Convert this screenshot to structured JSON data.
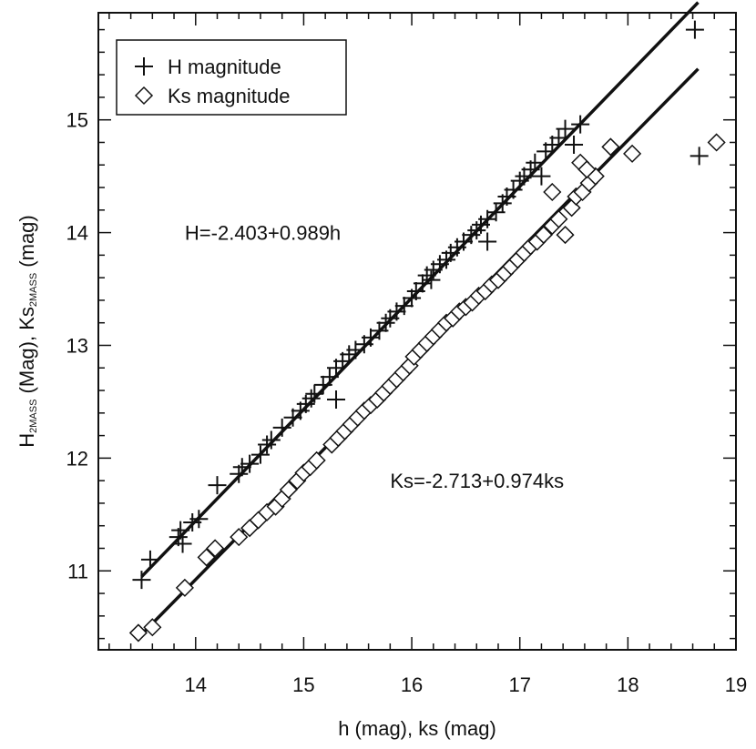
{
  "chart_data": {
    "type": "scatter",
    "xlabel": "h (mag), ks (mag)",
    "ylabel_parts": [
      {
        "text": "H",
        "sub": false
      },
      {
        "text": "2MASS",
        "sub": true
      },
      {
        "text": " (Mag), Ks",
        "sub": false
      },
      {
        "text": "2MASS",
        "sub": true
      },
      {
        "text": " (mag)",
        "sub": false
      }
    ],
    "xlim": [
      13.1,
      19.0
    ],
    "ylim": [
      10.3,
      15.95
    ],
    "xticks": [
      14,
      15,
      16,
      17,
      18,
      19
    ],
    "yticks": [
      11,
      12,
      13,
      14,
      15
    ],
    "xminor": 0.2,
    "yminor": 0.2,
    "grid": false,
    "legend": {
      "position": "top-left",
      "entries": [
        {
          "marker": "plus",
          "label": "H magnitude"
        },
        {
          "marker": "diamond",
          "label": "Ks magnitude"
        }
      ]
    },
    "annotations": [
      {
        "text": "H=-2.403+0.989h",
        "x": 13.9,
        "y": 14.0
      },
      {
        "text": "Ks=-2.713+0.974ks",
        "x": 15.8,
        "y": 11.8
      }
    ],
    "fits": [
      {
        "series": "H magnitude",
        "intercept": -2.403,
        "slope": 0.989,
        "x_range": [
          13.5,
          18.65
        ]
      },
      {
        "series": "Ks magnitude",
        "intercept": -2.713,
        "slope": 0.974,
        "x_range": [
          13.5,
          18.65
        ]
      }
    ],
    "series": [
      {
        "name": "H magnitude",
        "marker": "plus",
        "points": [
          [
            13.5,
            10.92
          ],
          [
            13.58,
            11.1
          ],
          [
            13.84,
            11.3
          ],
          [
            13.86,
            11.36
          ],
          [
            13.88,
            11.24
          ],
          [
            13.97,
            11.43
          ],
          [
            14.03,
            11.46
          ],
          [
            14.2,
            11.76
          ],
          [
            14.4,
            11.86
          ],
          [
            14.43,
            11.92
          ],
          [
            14.5,
            11.95
          ],
          [
            14.6,
            12.03
          ],
          [
            14.66,
            12.12
          ],
          [
            14.7,
            12.16
          ],
          [
            14.8,
            12.27
          ],
          [
            14.9,
            12.36
          ],
          [
            14.97,
            12.42
          ],
          [
            15.02,
            12.48
          ],
          [
            15.07,
            12.53
          ],
          [
            15.1,
            12.57
          ],
          [
            15.18,
            12.65
          ],
          [
            15.24,
            12.72
          ],
          [
            15.3,
            12.52
          ],
          [
            15.3,
            12.8
          ],
          [
            15.36,
            12.86
          ],
          [
            15.42,
            12.92
          ],
          [
            15.48,
            12.96
          ],
          [
            15.56,
            13.01
          ],
          [
            15.62,
            13.07
          ],
          [
            15.7,
            13.13
          ],
          [
            15.76,
            13.2
          ],
          [
            15.8,
            13.24
          ],
          [
            15.86,
            13.3
          ],
          [
            15.93,
            13.35
          ],
          [
            16.0,
            13.42
          ],
          [
            16.04,
            13.48
          ],
          [
            16.1,
            13.55
          ],
          [
            16.14,
            13.62
          ],
          [
            16.18,
            13.58
          ],
          [
            16.2,
            13.67
          ],
          [
            16.26,
            13.72
          ],
          [
            16.32,
            13.76
          ],
          [
            16.36,
            13.82
          ],
          [
            16.42,
            13.87
          ],
          [
            16.48,
            13.92
          ],
          [
            16.55,
            13.98
          ],
          [
            16.6,
            14.02
          ],
          [
            16.64,
            14.07
          ],
          [
            16.7,
            14.12
          ],
          [
            16.7,
            13.92
          ],
          [
            16.78,
            14.18
          ],
          [
            16.84,
            14.26
          ],
          [
            16.88,
            14.32
          ],
          [
            16.94,
            14.38
          ],
          [
            17.0,
            14.46
          ],
          [
            17.04,
            14.5
          ],
          [
            17.1,
            14.56
          ],
          [
            17.14,
            14.62
          ],
          [
            17.2,
            14.5
          ],
          [
            17.24,
            14.72
          ],
          [
            17.3,
            14.78
          ],
          [
            17.36,
            14.84
          ],
          [
            17.42,
            14.92
          ],
          [
            17.5,
            14.78
          ],
          [
            17.56,
            14.96
          ],
          [
            18.62,
            15.8
          ],
          [
            18.66,
            14.68
          ]
        ]
      },
      {
        "name": "Ks magnitude",
        "marker": "diamond",
        "points": [
          [
            13.47,
            10.45
          ],
          [
            13.6,
            10.5
          ],
          [
            13.9,
            10.85
          ],
          [
            14.1,
            11.12
          ],
          [
            14.18,
            11.2
          ],
          [
            14.4,
            11.3
          ],
          [
            14.5,
            11.38
          ],
          [
            14.58,
            11.45
          ],
          [
            14.66,
            11.52
          ],
          [
            14.74,
            11.57
          ],
          [
            14.8,
            11.64
          ],
          [
            14.86,
            11.72
          ],
          [
            14.94,
            11.8
          ],
          [
            15.0,
            11.87
          ],
          [
            15.06,
            11.92
          ],
          [
            15.12,
            11.98
          ],
          [
            15.26,
            12.12
          ],
          [
            15.32,
            12.18
          ],
          [
            15.38,
            12.24
          ],
          [
            15.44,
            12.3
          ],
          [
            15.5,
            12.36
          ],
          [
            15.56,
            12.42
          ],
          [
            15.62,
            12.47
          ],
          [
            15.68,
            12.52
          ],
          [
            15.74,
            12.58
          ],
          [
            15.8,
            12.64
          ],
          [
            15.86,
            12.7
          ],
          [
            15.92,
            12.76
          ],
          [
            15.98,
            12.82
          ],
          [
            16.02,
            12.9
          ],
          [
            16.08,
            12.96
          ],
          [
            16.14,
            13.02
          ],
          [
            16.2,
            13.08
          ],
          [
            16.26,
            13.14
          ],
          [
            16.32,
            13.2
          ],
          [
            16.38,
            13.24
          ],
          [
            16.44,
            13.3
          ],
          [
            16.5,
            13.34
          ],
          [
            16.56,
            13.38
          ],
          [
            16.62,
            13.44
          ],
          [
            16.68,
            13.48
          ],
          [
            16.74,
            13.54
          ],
          [
            16.8,
            13.58
          ],
          [
            16.86,
            13.64
          ],
          [
            16.92,
            13.7
          ],
          [
            16.98,
            13.76
          ],
          [
            17.04,
            13.82
          ],
          [
            17.1,
            13.88
          ],
          [
            17.16,
            13.92
          ],
          [
            17.22,
            13.98
          ],
          [
            17.3,
            14.06
          ],
          [
            17.36,
            14.12
          ],
          [
            17.42,
            13.98
          ],
          [
            17.48,
            14.22
          ],
          [
            17.52,
            14.32
          ],
          [
            17.58,
            14.36
          ],
          [
            17.64,
            14.44
          ],
          [
            17.7,
            14.5
          ],
          [
            17.56,
            14.62
          ],
          [
            17.84,
            14.76
          ],
          [
            18.04,
            14.7
          ],
          [
            18.82,
            14.8
          ],
          [
            17.3,
            14.36
          ],
          [
            17.62,
            14.56
          ]
        ]
      }
    ]
  }
}
